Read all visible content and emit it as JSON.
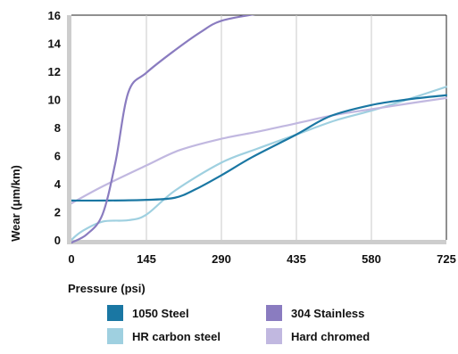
{
  "chart_data": {
    "type": "line",
    "xlabel": "Pressure (psi)",
    "ylabel": "Wear (μm/km)",
    "xlim": [
      0,
      725
    ],
    "ylim": [
      0,
      16
    ],
    "x_ticks": [
      0,
      145,
      290,
      435,
      580,
      725
    ],
    "y_ticks": [
      0,
      2,
      4,
      6,
      8,
      10,
      12,
      14,
      16
    ],
    "grid": "vertical",
    "legend_position": "bottom",
    "series": [
      {
        "name": "1050 Steel",
        "color": "#1a77a3",
        "points": [
          [
            0,
            2.8
          ],
          [
            70,
            2.8
          ],
          [
            145,
            2.85
          ],
          [
            200,
            3.0
          ],
          [
            240,
            3.6
          ],
          [
            290,
            4.6
          ],
          [
            350,
            5.9
          ],
          [
            435,
            7.5
          ],
          [
            500,
            8.8
          ],
          [
            580,
            9.6
          ],
          [
            650,
            10.0
          ],
          [
            725,
            10.3
          ]
        ]
      },
      {
        "name": "304 Stainless",
        "color": "#8a7cc0",
        "points": [
          [
            0,
            -0.2
          ],
          [
            30,
            0.4
          ],
          [
            60,
            1.8
          ],
          [
            85,
            5.5
          ],
          [
            110,
            10.5
          ],
          [
            145,
            11.9
          ],
          [
            200,
            13.5
          ],
          [
            250,
            14.8
          ],
          [
            290,
            15.6
          ],
          [
            360,
            16.1
          ]
        ]
      },
      {
        "name": "HR carbon steel",
        "color": "#9fd0e0",
        "points": [
          [
            0,
            0.0
          ],
          [
            20,
            0.6
          ],
          [
            60,
            1.3
          ],
          [
            110,
            1.4
          ],
          [
            145,
            1.8
          ],
          [
            200,
            3.5
          ],
          [
            290,
            5.5
          ],
          [
            360,
            6.5
          ],
          [
            435,
            7.5
          ],
          [
            510,
            8.5
          ],
          [
            580,
            9.2
          ],
          [
            650,
            10.0
          ],
          [
            725,
            10.9
          ]
        ]
      },
      {
        "name": "Hard chromed",
        "color": "#c1b8e0",
        "points": [
          [
            0,
            2.6
          ],
          [
            60,
            3.8
          ],
          [
            145,
            5.3
          ],
          [
            210,
            6.4
          ],
          [
            290,
            7.2
          ],
          [
            360,
            7.7
          ],
          [
            435,
            8.3
          ],
          [
            510,
            8.9
          ],
          [
            580,
            9.3
          ],
          [
            650,
            9.7
          ],
          [
            725,
            10.1
          ]
        ]
      }
    ]
  }
}
